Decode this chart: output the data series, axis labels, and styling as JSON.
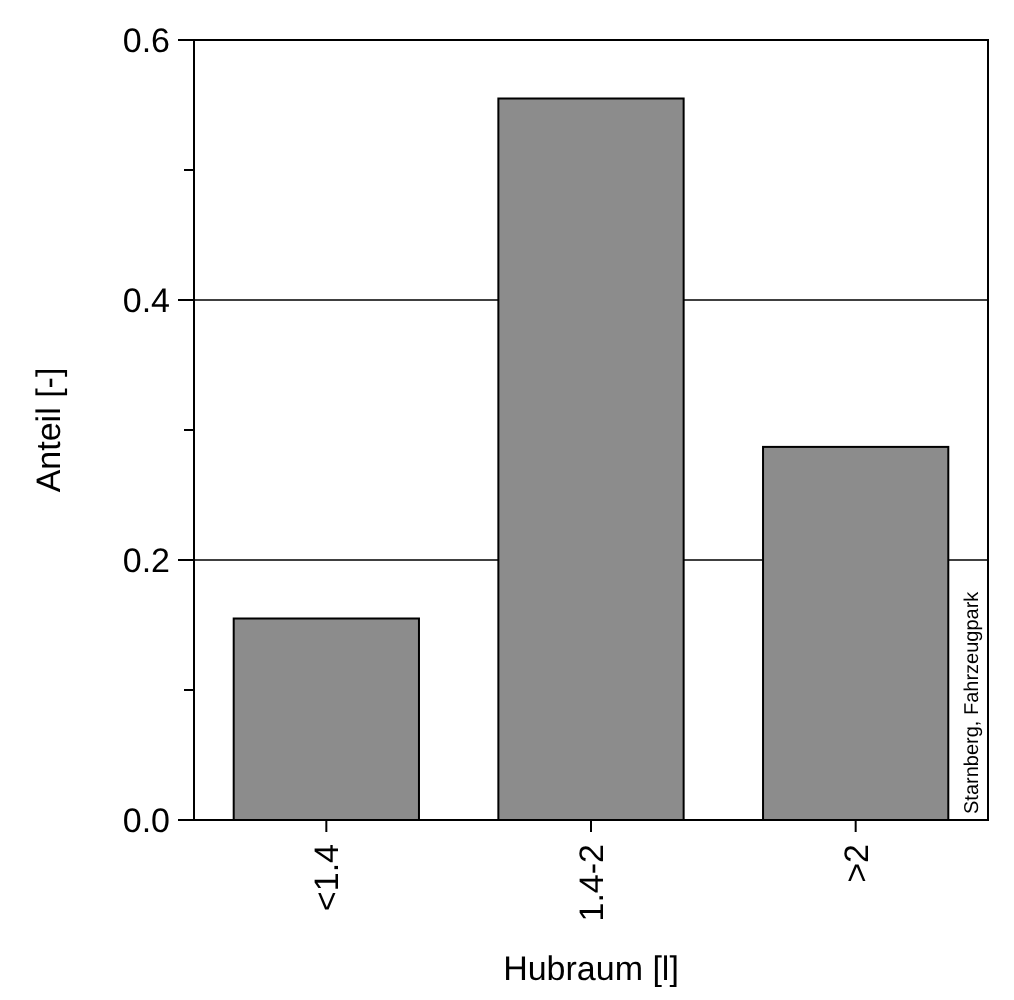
{
  "chart_data": {
    "type": "bar",
    "xlabel": "Hubraum [l]",
    "ylabel": "Anteil [-]",
    "categories": [
      "<1.4",
      "1.4-2",
      ">2"
    ],
    "values": [
      0.155,
      0.555,
      0.287
    ],
    "color": "#8c8c8c",
    "ylim": [
      0,
      0.6
    ],
    "yticks": [
      {
        "value": 0,
        "label": "0.0"
      },
      {
        "value": 0.1,
        "label": null
      },
      {
        "value": 0.2,
        "label": "0.2"
      },
      {
        "value": 0.3,
        "label": null
      },
      {
        "value": 0.4,
        "label": "0.4"
      },
      {
        "value": 0.5,
        "label": null
      },
      {
        "value": 0.6,
        "label": "0.6"
      }
    ],
    "grid": "y",
    "annotations": [
      "Starnberg, Fahrzeugpark"
    ]
  }
}
